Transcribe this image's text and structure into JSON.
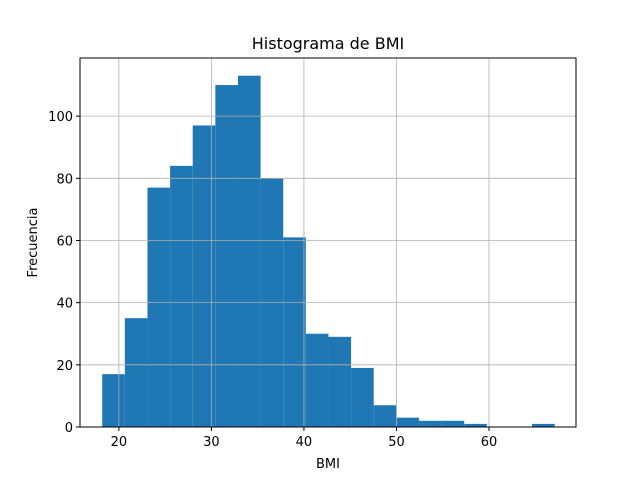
{
  "chart_data": {
    "type": "bar",
    "title": "Histograma de BMI",
    "xlabel": "BMI",
    "ylabel": "Frecuencia",
    "xlim": [
      15.8,
      69.4
    ],
    "ylim": [
      0,
      118.7
    ],
    "xticks": [
      20,
      30,
      40,
      50,
      60
    ],
    "yticks": [
      0,
      20,
      40,
      60,
      80,
      100
    ],
    "grid": true,
    "bar_color": "#1f77b4",
    "bins": {
      "start": 18.2,
      "end": 67.1,
      "count": 20
    },
    "values": [
      17,
      35,
      77,
      84,
      97,
      110,
      113,
      80,
      61,
      30,
      29,
      19,
      7,
      3,
      2,
      2,
      1,
      0,
      0,
      1
    ]
  }
}
